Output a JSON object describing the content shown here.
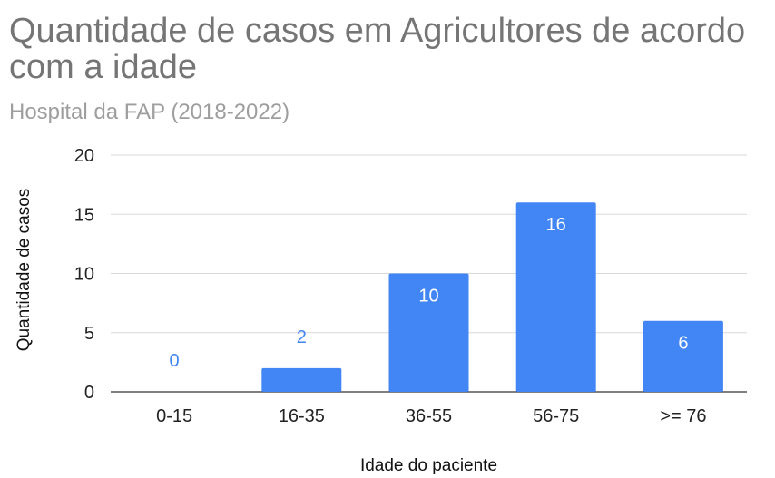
{
  "chart_data": {
    "type": "bar",
    "title": "Quantidade de casos em Agricultores de acordo com a idade",
    "subtitle": "Hospital da FAP (2018-2022)",
    "xlabel": "Idade do paciente",
    "ylabel": "Quantidade de casos",
    "categories": [
      "0-15",
      "16-35",
      "36-55",
      "56-75",
      ">= 76"
    ],
    "values": [
      0,
      2,
      10,
      16,
      6
    ],
    "data_labels": [
      "0",
      "2",
      "10",
      "16",
      "6"
    ],
    "ylim": [
      0,
      20
    ],
    "yticks": [
      0,
      5,
      10,
      15,
      20
    ],
    "grid": true,
    "legend": "none",
    "colors": {
      "bar": "#4285f4",
      "label_inside": "#ffffff",
      "label_outside": "#4285f4",
      "grid": "#d9d9d9"
    }
  }
}
